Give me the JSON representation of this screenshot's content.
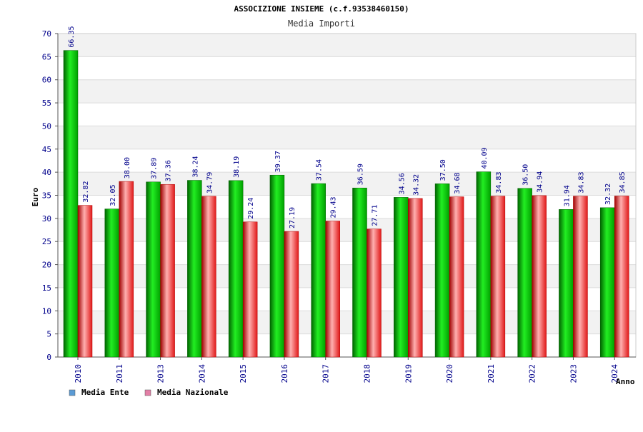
{
  "colors": {
    "band_odd": "#f2f2f2",
    "band_even": "#ffffff",
    "grid": "#dcdcdc",
    "legend_ente": "#5b9bd5",
    "legend_nazionale": "#e37fa6",
    "bar_ente": "#00c000",
    "bar_nazionale": "#e02020"
  },
  "chart_data": {
    "type": "bar",
    "title": "ASSOCIZIONE INSIEME (c.f.93538460150)",
    "subtitle": "Media Importi",
    "xlabel": "Anno",
    "ylabel": "Euro",
    "ylim": [
      0,
      70
    ],
    "yticks": [
      "0",
      "5",
      "10",
      "15",
      "20",
      "25",
      "30",
      "35",
      "40",
      "45",
      "50",
      "55",
      "60",
      "65",
      "70"
    ],
    "grid": true,
    "legend_position": "bottom-left",
    "categories": [
      "2010",
      "2011",
      "2013",
      "2014",
      "2015",
      "2016",
      "2017",
      "2018",
      "2019",
      "2020",
      "2021",
      "2022",
      "2023",
      "2024"
    ],
    "series": [
      {
        "name": "Media Ente",
        "values": [
          66.35,
          32.05,
          37.89,
          38.24,
          38.19,
          39.37,
          37.54,
          36.59,
          34.56,
          37.5,
          40.09,
          36.5,
          31.94,
          32.32
        ],
        "labels": [
          "66.35",
          "32.05",
          "37.89",
          "38.24",
          "38.19",
          "39.37",
          "37.54",
          "36.59",
          "34.56",
          "37.50",
          "40.09",
          "36.50",
          "31.94",
          "32.32"
        ]
      },
      {
        "name": "Media Nazionale",
        "values": [
          32.82,
          38.0,
          37.36,
          34.79,
          29.24,
          27.19,
          29.43,
          27.71,
          34.32,
          34.68,
          34.83,
          34.94,
          34.83,
          34.85
        ],
        "labels": [
          "32.82",
          "38.00",
          "37.36",
          "34.79",
          "29.24",
          "27.19",
          "29.43",
          "27.71",
          "34.32",
          "34.68",
          "34.83",
          "34.94",
          "34.83",
          "34.85"
        ]
      }
    ]
  }
}
